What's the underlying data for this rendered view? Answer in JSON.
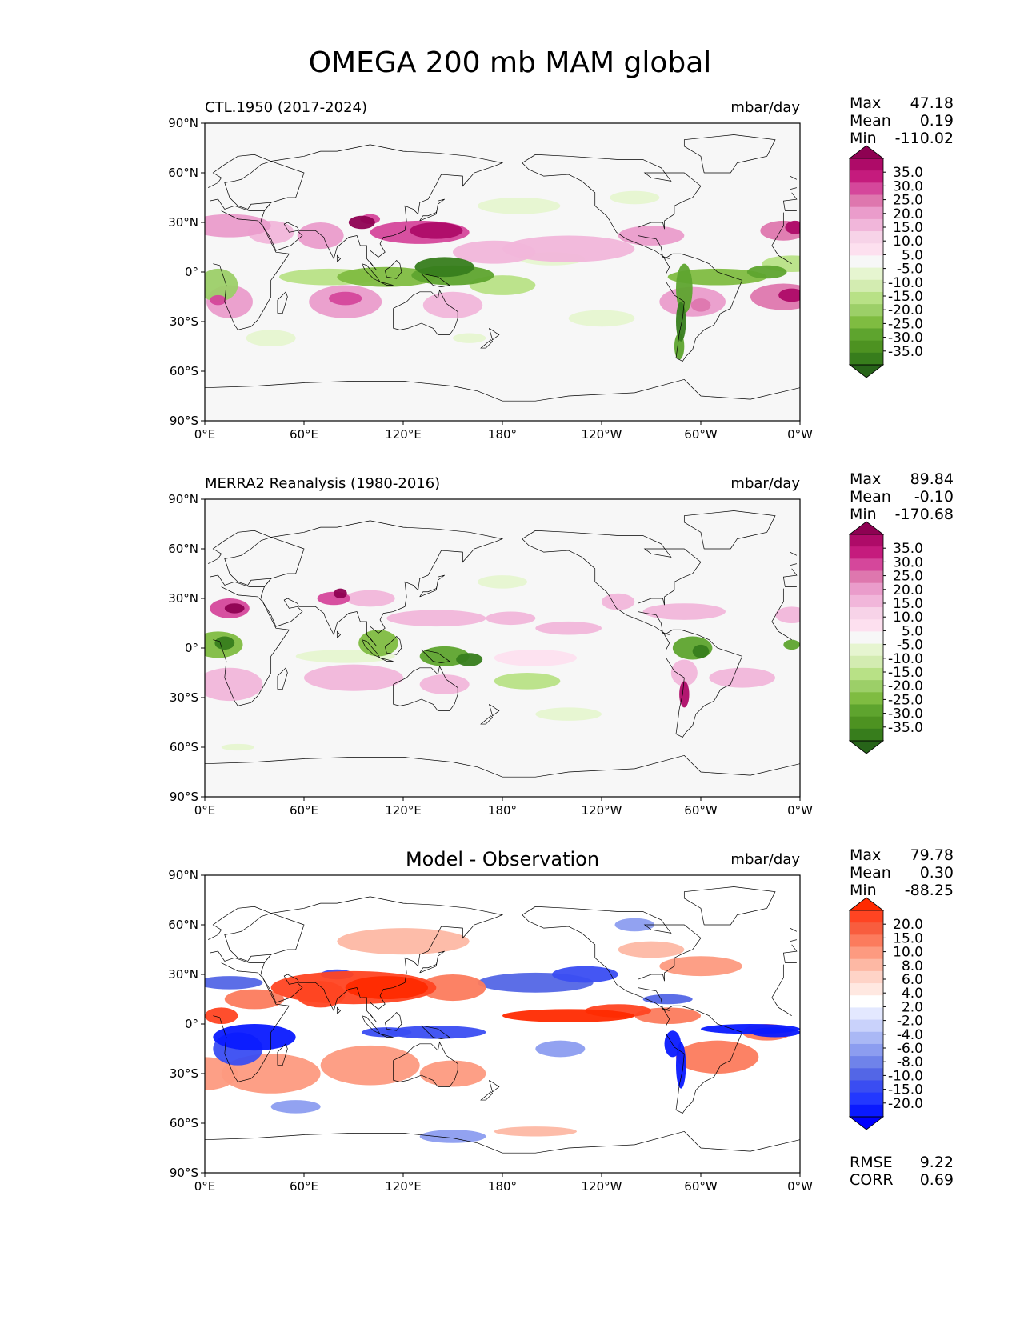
{
  "title": "OMEGA 200 mb MAM global",
  "lat_ticks": [
    "90°N",
    "60°N",
    "30°N",
    "0°",
    "30°S",
    "60°S",
    "90°S"
  ],
  "lon_ticks": [
    "0°E",
    "60°E",
    "120°E",
    "180°",
    "120°W",
    "60°W",
    "0°W"
  ],
  "panels": [
    {
      "title": "CTL.1950 (2017-2024)",
      "title_style": "left",
      "units": "mbar/day",
      "stats": {
        "max_label": "Max",
        "max": "47.18",
        "mean_label": "Mean",
        "mean": "0.19",
        "min_label": "Min",
        "min": "-110.02"
      },
      "colorbar_labels": [
        "35.0",
        "30.0",
        "25.0",
        "20.0",
        "15.0",
        "10.0",
        "5.0",
        "-5.0",
        "-10.0",
        "-15.0",
        "-20.0",
        "-25.0",
        "-30.0",
        "-35.0"
      ],
      "colorbar_colors": [
        "#8e0152",
        "#ae0b68",
        "#c51b7d",
        "#d5479b",
        "#de77ae",
        "#ea9ccb",
        "#f1b6da",
        "#f7d3e8",
        "#fde0ef",
        "#f7f7f7",
        "#e6f5d0",
        "#d3ecb1",
        "#b8e186",
        "#9ccf68",
        "#7fbc41",
        "#5ea42e",
        "#4d9221",
        "#377d1c",
        "#276419"
      ],
      "palette": "piyg"
    },
    {
      "title": "MERRA2 Reanalysis (1980-2016)",
      "title_style": "left",
      "units": "mbar/day",
      "stats": {
        "max_label": "Max",
        "max": "89.84",
        "mean_label": "Mean",
        "mean": "-0.10",
        "min_label": "Min",
        "min": "-170.68"
      },
      "colorbar_labels": [
        "35.0",
        "30.0",
        "25.0",
        "20.0",
        "15.0",
        "10.0",
        "5.0",
        "-5.0",
        "-10.0",
        "-15.0",
        "-20.0",
        "-25.0",
        "-30.0",
        "-35.0"
      ],
      "colorbar_colors": [
        "#8e0152",
        "#ae0b68",
        "#c51b7d",
        "#d5479b",
        "#de77ae",
        "#ea9ccb",
        "#f1b6da",
        "#f7d3e8",
        "#fde0ef",
        "#f7f7f7",
        "#e6f5d0",
        "#d3ecb1",
        "#b8e186",
        "#9ccf68",
        "#7fbc41",
        "#5ea42e",
        "#4d9221",
        "#377d1c",
        "#276419"
      ],
      "palette": "piyg"
    },
    {
      "title": "Model - Observation",
      "title_style": "center",
      "units": "mbar/day",
      "stats": {
        "max_label": "Max",
        "max": "79.78",
        "mean_label": "Mean",
        "mean": "0.30",
        "min_label": "Min",
        "min": "-88.25"
      },
      "colorbar_labels": [
        "20.0",
        "15.0",
        "10.0",
        "8.0",
        "6.0",
        "4.0",
        "2.0",
        "-2.0",
        "-4.0",
        "-6.0",
        "-8.0",
        "-10.0",
        "-15.0",
        "-20.0"
      ],
      "colorbar_colors": [
        "#ff2a00",
        "#ff4422",
        "#f85d3e",
        "#fc7b5d",
        "#fd9a80",
        "#fdb8a4",
        "#fed3c7",
        "#ffe8e1",
        "#ffffff",
        "#e3e8ff",
        "#c9d2fb",
        "#aab8f5",
        "#8c9df0",
        "#6f83ea",
        "#5366e6",
        "#3a4df2",
        "#2338ff",
        "#0a1aff",
        "#0000ff"
      ],
      "palette": "rdbu",
      "rmse_label": "RMSE",
      "rmse": "9.22",
      "corr_label": "CORR",
      "corr": "0.69"
    }
  ]
}
